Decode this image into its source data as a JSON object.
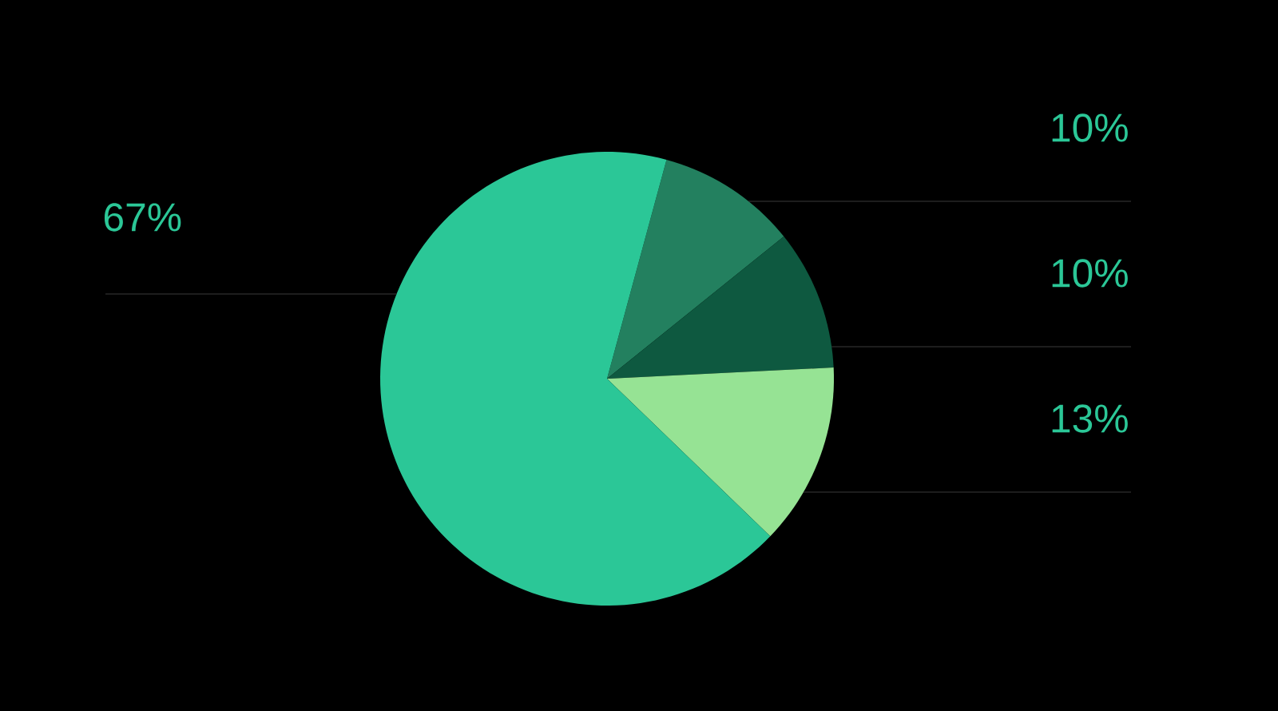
{
  "chart_data": {
    "type": "pie",
    "categories": [
      null,
      null,
      null,
      null
    ],
    "values": [
      10,
      10,
      13,
      67
    ],
    "colors": [
      "#23805f",
      "#0e5940",
      "#96e394",
      "#2bc797"
    ],
    "annotations": [
      "10%",
      "10%",
      "13%",
      "67%"
    ]
  }
}
